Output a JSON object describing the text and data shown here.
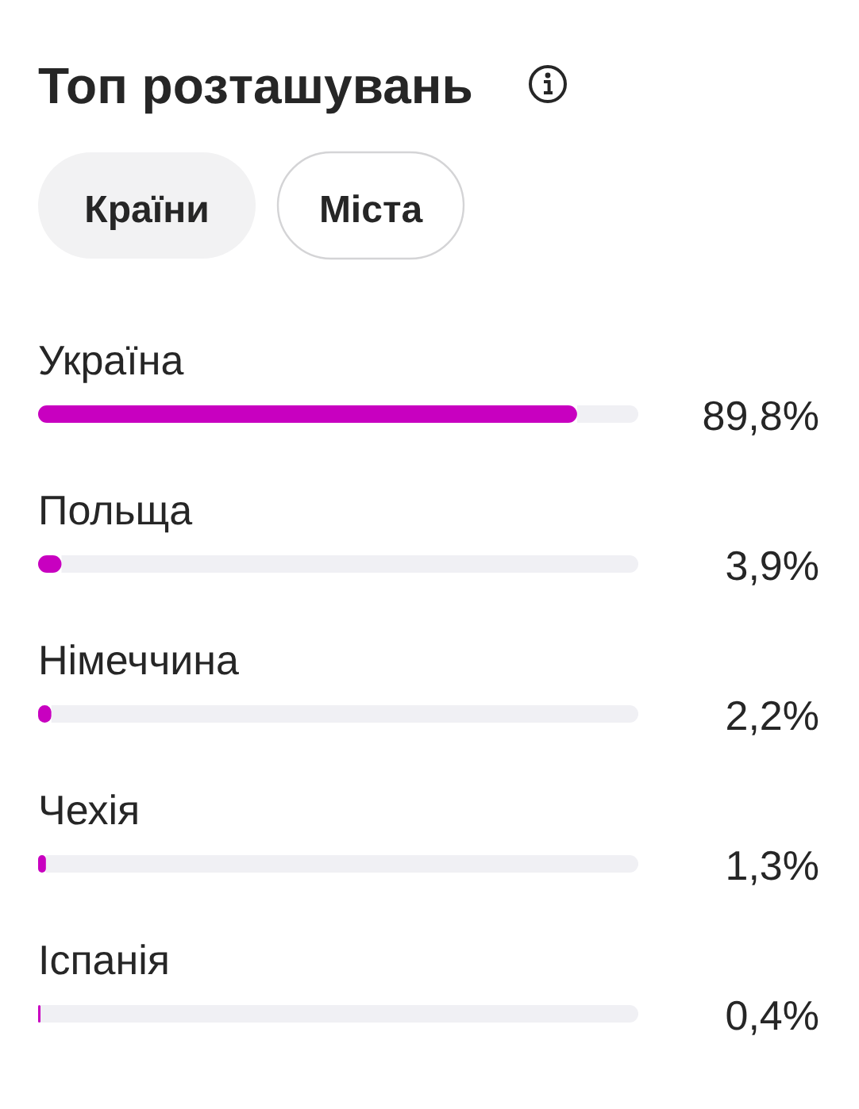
{
  "chart_data": {
    "type": "bar",
    "orientation": "horizontal",
    "title": "Топ розташувань",
    "annotations": [
      "Країни",
      "Міста"
    ],
    "categories": [
      "Україна",
      "Польща",
      "Німеччина",
      "Чехія",
      "Іспанія"
    ],
    "values": [
      89.8,
      3.9,
      2.2,
      1.3,
      0.4
    ],
    "value_labels": [
      "89,8%",
      "3,9%",
      "2,2%",
      "1,3%",
      "0,4%"
    ],
    "color": "#c800c0",
    "xlim": [
      0,
      100
    ]
  }
}
